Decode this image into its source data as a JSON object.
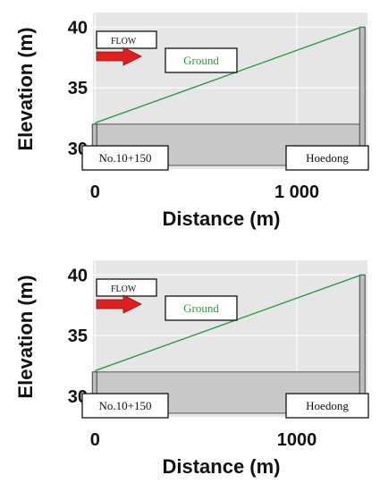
{
  "colors": {
    "plot_bg": "#e6e6e6",
    "channel_fill": "#c8c8c8",
    "ground_line": "#2e9b3a",
    "arrow": "#e02020",
    "grid": "#ffffff"
  },
  "chart_data": [
    {
      "type": "line",
      "title": "",
      "xlabel": "Distance (m)",
      "ylabel": "Elevation (m)",
      "xlim": [
        -10,
        1350
      ],
      "ylim": [
        28.3,
        41.2
      ],
      "x_ticks": [
        0,
        1000
      ],
      "x_tick_labels": [
        "0",
        "1 000"
      ],
      "y_ticks": [
        30,
        35,
        40
      ],
      "y_tick_labels": [
        "30",
        "35",
        "40"
      ],
      "grid": true,
      "ground": {
        "name": "Ground",
        "x": [
          0,
          1320
        ],
        "y": [
          32.1,
          40.0
        ]
      },
      "channel": {
        "x": [
          0,
          1320
        ],
        "top": 32.0,
        "bottom": 28.6
      },
      "flow_label": "FLOW",
      "start_label": "No.10+150",
      "end_label": "Hoedong"
    },
    {
      "type": "line",
      "title": "",
      "xlabel": "Distance (m)",
      "ylabel": "Elevation (m)",
      "xlim": [
        -10,
        1350
      ],
      "ylim": [
        28.3,
        41.2
      ],
      "x_ticks": [
        0,
        1000
      ],
      "x_tick_labels": [
        "0",
        "1000"
      ],
      "y_ticks": [
        30,
        35,
        40
      ],
      "y_tick_labels": [
        "30",
        "35",
        "40"
      ],
      "grid": true,
      "ground": {
        "name": "Ground",
        "x": [
          0,
          1320
        ],
        "y": [
          32.1,
          40.0
        ]
      },
      "channel": {
        "x": [
          0,
          1320
        ],
        "top": 32.0,
        "bottom": 28.6
      },
      "flow_label": "FLOW",
      "start_label": "No.10+150",
      "end_label": "Hoedong"
    }
  ]
}
